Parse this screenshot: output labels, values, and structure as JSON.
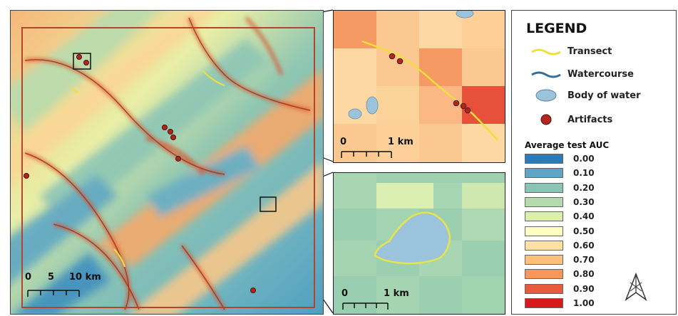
{
  "legend": {
    "title": "LEGEND",
    "items": [
      {
        "label": "Transect",
        "icon": "transect-icon"
      },
      {
        "label": "Watercourse",
        "icon": "watercourse-icon"
      },
      {
        "label": "Body of water",
        "icon": "water-body-icon"
      },
      {
        "label": "Artifacts",
        "icon": "artifact-icon"
      }
    ],
    "auc_title": "Average test AUC",
    "auc_classes": [
      {
        "value": "0.00",
        "color": "#2b7bb9"
      },
      {
        "value": "0.10",
        "color": "#5ea7c4"
      },
      {
        "value": "0.20",
        "color": "#8ac4b3"
      },
      {
        "value": "0.30",
        "color": "#b4dbac"
      },
      {
        "value": "0.40",
        "color": "#dbefab"
      },
      {
        "value": "0.50",
        "color": "#fefec1"
      },
      {
        "value": "0.60",
        "color": "#fee0a0"
      },
      {
        "value": "0.70",
        "color": "#fdbf7a"
      },
      {
        "value": "0.80",
        "color": "#f99658"
      },
      {
        "value": "0.90",
        "color": "#e75a3c"
      },
      {
        "value": "1.00",
        "color": "#d7191c"
      }
    ]
  },
  "main_map": {
    "scale_labels": [
      "0",
      "5",
      "10 km"
    ]
  },
  "inset_top": {
    "scale_labels": [
      "0",
      "1 km"
    ]
  },
  "inset_bottom": {
    "scale_labels": [
      "0",
      "1 km"
    ]
  },
  "colors": {
    "transect": "#f2e03a",
    "watercourse": "#2f6f9a",
    "water_body": "#9cc3dc",
    "artifact": "#b3261e",
    "frame": "#b5452a"
  }
}
